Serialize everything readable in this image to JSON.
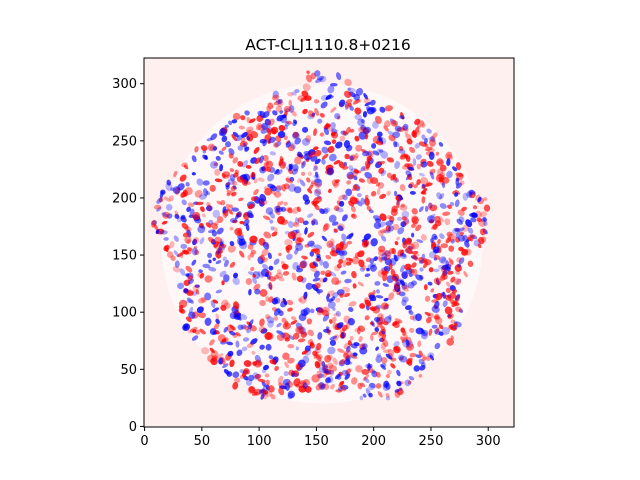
{
  "chart_data": {
    "type": "heatmap",
    "title": "ACT-CLJ1110.8+0216",
    "xlabel": "",
    "ylabel": "",
    "image_extent": {
      "x": [
        0,
        322
      ],
      "y": [
        0,
        322
      ]
    },
    "xlim": [
      -0.5,
      322.5
    ],
    "ylim": [
      322.5,
      -0.5
    ],
    "y_axis_inverted": true,
    "x_ticks": [
      0,
      50,
      100,
      150,
      200,
      250,
      300
    ],
    "x_tick_labels": [
      "0",
      "50",
      "100",
      "150",
      "200",
      "250",
      "300"
    ],
    "y_ticks": [
      0,
      50,
      100,
      150,
      200,
      250,
      300
    ],
    "y_tick_labels": [
      "0",
      "50",
      "100",
      "150",
      "200",
      "250",
      "300"
    ],
    "colormap": "bwr",
    "colors": {
      "negative": "#0000ff",
      "zero": "#ffffff",
      "positive": "#ff0000",
      "background": "#fff0f0"
    },
    "footprint_description": "irregular roughly circular region of small-scale red/blue mottled residual noise centered near (155, 160), radius about 140, on a faint pink uniform background",
    "footprint_center": [
      155,
      160
    ],
    "footprint_radius": 140,
    "grid": false,
    "legend": "none"
  }
}
